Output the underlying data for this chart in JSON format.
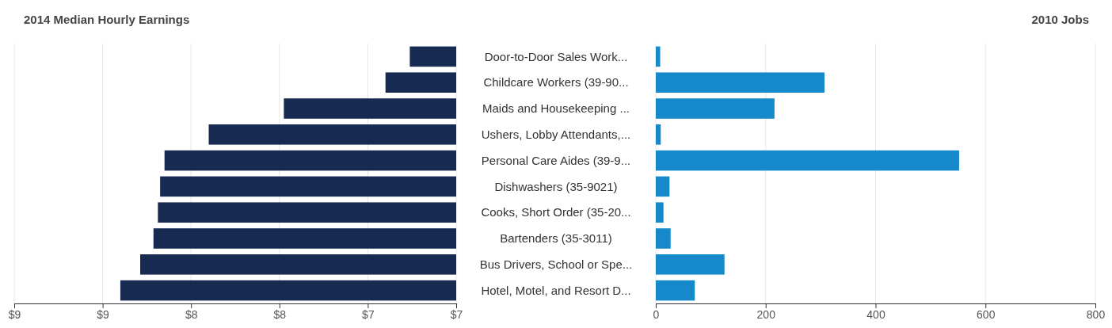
{
  "chart_data": [
    {
      "type": "bar",
      "orientation": "horizontal",
      "title": "2014 Median Hourly Earnings",
      "categories": [
        "Door-to-Door Sales Work...",
        "Childcare Workers (39-90...",
        "Maids and Housekeeping ...",
        "Ushers, Lobby Attendants,...",
        "Personal Care Aides (39-9...",
        "Dishwashers (35-9021)",
        "Cooks, Short Order (35-20...",
        "Bartenders (35-3011)",
        "Bus Drivers, School or Spe...",
        "Hotel, Motel, and Resort D..."
      ],
      "values": [
        7.21,
        7.32,
        7.78,
        8.12,
        8.32,
        8.34,
        8.35,
        8.37,
        8.43,
        8.52
      ],
      "color": "#172a51",
      "xlim": [
        9,
        7
      ],
      "xticks": [
        {
          "value": 9,
          "label": "$9"
        },
        {
          "value": 8.6,
          "label": "$9"
        },
        {
          "value": 8.2,
          "label": "$8"
        },
        {
          "value": 7.8,
          "label": "$8"
        },
        {
          "value": 7.4,
          "label": "$7"
        },
        {
          "value": 7,
          "label": "$7"
        }
      ],
      "grid": "x"
    },
    {
      "type": "bar",
      "orientation": "horizontal",
      "title": "2010 Jobs",
      "categories": [
        null,
        null,
        null,
        null,
        null,
        null,
        null,
        null,
        null,
        null
      ],
      "values": [
        8,
        307,
        216,
        9,
        552,
        25,
        14,
        27,
        125,
        71
      ],
      "color": "#1589c9",
      "xlim": [
        0,
        800
      ],
      "xticks": [
        0,
        200,
        400,
        600,
        800
      ],
      "grid": "x"
    }
  ]
}
